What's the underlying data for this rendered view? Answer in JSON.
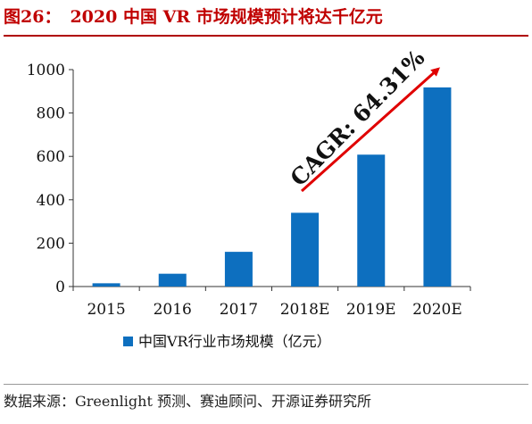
{
  "figure": {
    "label": "图26：",
    "title": "2020 中国 VR 市场规模预计将达千亿元"
  },
  "source_note": "数据来源：Greenlight 预测、赛迪顾问、开源证券研究所",
  "chart_data": {
    "type": "bar",
    "categories": [
      "2015",
      "2016",
      "2017",
      "2018E",
      "2019E",
      "2020E"
    ],
    "series": [
      {
        "name": "中国VR行业市场规模（亿元）",
        "values": [
          15,
          59,
          160,
          340,
          608,
          918
        ],
        "color": "#0d6fbf"
      }
    ],
    "ylim": [
      0,
      1000
    ],
    "yticks": [
      0,
      200,
      400,
      600,
      800,
      1000
    ],
    "grid": false,
    "legend_position": "bottom",
    "annotation": {
      "text": "CAGR: 64.31%",
      "color": "#e00000"
    }
  }
}
